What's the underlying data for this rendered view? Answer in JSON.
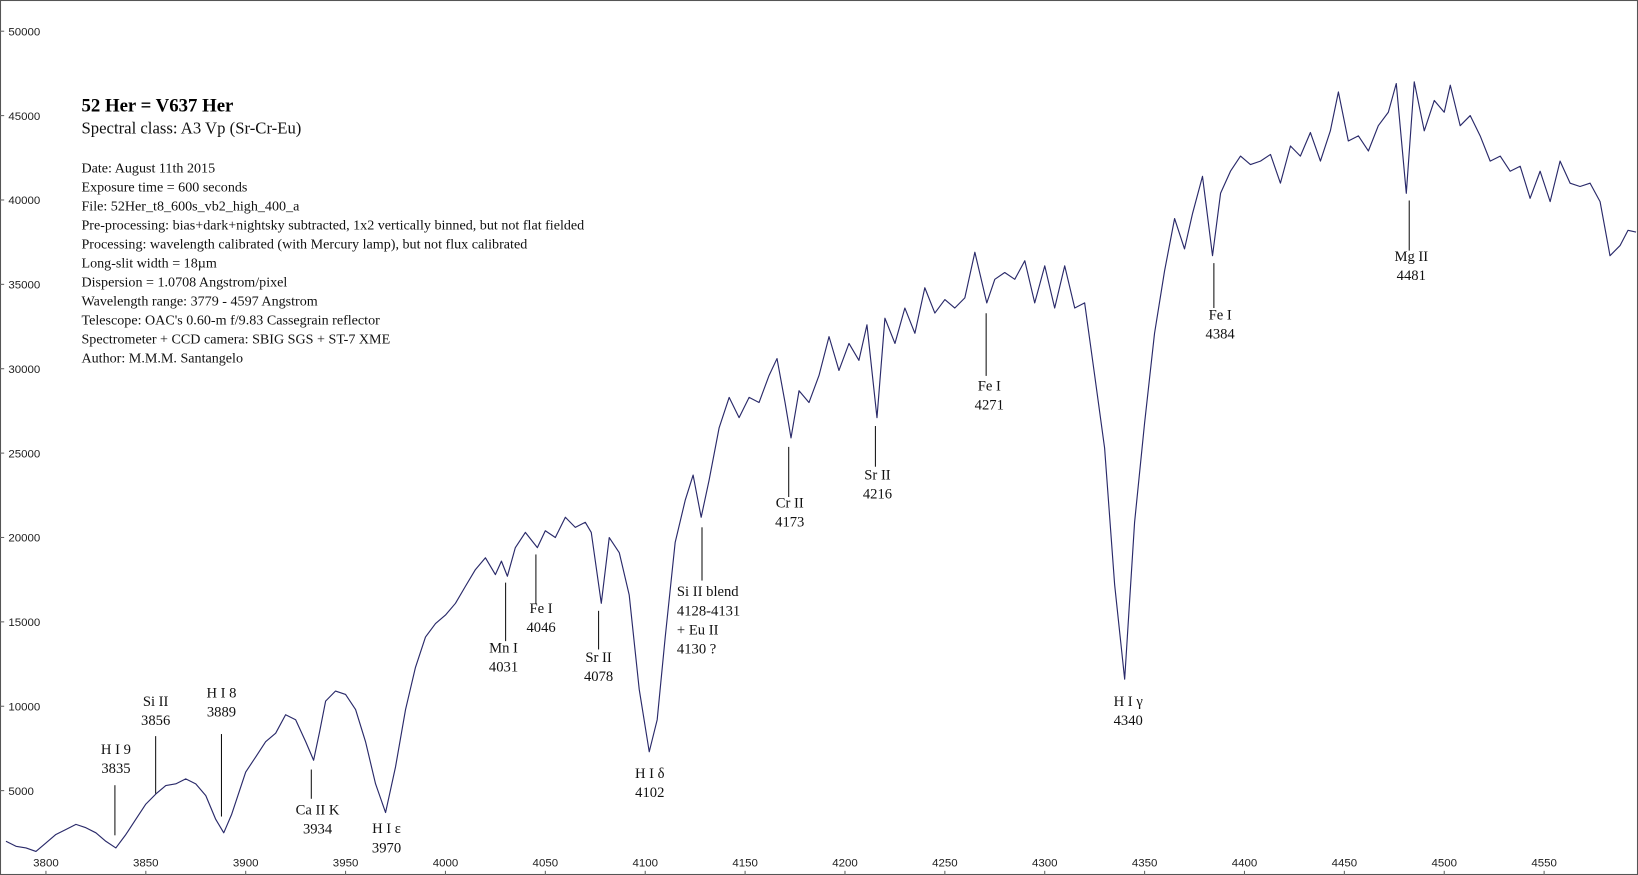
{
  "chart_data": {
    "type": "line",
    "title": "52 Her  = V637 Her",
    "subtitle": "Spectral class: A3 Vp (Sr-Cr-Eu)",
    "notes": [
      "Date: August 11th 2015",
      "Exposure time = 600 seconds",
      "File: 52Her_t8_600s_vb2_high_400_a",
      "Pre-processing: bias+dark+nightsky subtracted, 1x2 vertically binned, but not flat fielded",
      "Processing: wavelength calibrated (with Mercury lamp), but not flux calibrated",
      "Long-slit width = 18µm",
      "Dispersion = 1.0708 Angstrom/pixel",
      "Wavelength range: 3779 - 4597 Angstrom",
      "Telescope: OAC's 0.60-m f/9.83 Cassegrain reflector",
      "Spectrometer + CCD camera: SBIG SGS + ST-7 XME",
      "Author: M.M.M. Santangelo"
    ],
    "color": "#2a2a6a",
    "xlim": [
      3777,
      4597
    ],
    "ylim": [
      0,
      51850
    ],
    "xticks": [
      3800,
      3850,
      3900,
      3950,
      4000,
      4050,
      4100,
      4150,
      4200,
      4250,
      4300,
      4350,
      4400,
      4450,
      4500,
      4550
    ],
    "yticks": [
      5000,
      10000,
      15000,
      20000,
      25000,
      30000,
      35000,
      40000,
      45000,
      50000
    ],
    "x": [
      3780,
      3785,
      3790,
      3795,
      3800,
      3805,
      3810,
      3815,
      3820,
      3825,
      3830,
      3835,
      3840,
      3845,
      3850,
      3855,
      3860,
      3865,
      3870,
      3875,
      3880,
      3885,
      3889,
      3893,
      3900,
      3905,
      3910,
      3915,
      3920,
      3925,
      3930,
      3934,
      3937,
      3940,
      3945,
      3950,
      3955,
      3960,
      3965,
      3970,
      3975,
      3980,
      3985,
      3990,
      3995,
      4000,
      4005,
      4010,
      4015,
      4020,
      4025,
      4028,
      4031,
      4035,
      4040,
      4046,
      4050,
      4055,
      4060,
      4065,
      4070,
      4073,
      4078,
      4082,
      4087,
      4092,
      4097,
      4102,
      4106,
      4110,
      4115,
      4120,
      4124,
      4128,
      4132,
      4137,
      4142,
      4147,
      4152,
      4157,
      4162,
      4166,
      4170,
      4173,
      4177,
      4182,
      4187,
      4192,
      4197,
      4202,
      4207,
      4211,
      4216,
      4220,
      4225,
      4230,
      4235,
      4240,
      4245,
      4250,
      4255,
      4260,
      4265,
      4271,
      4275,
      4280,
      4285,
      4290,
      4295,
      4300,
      4305,
      4310,
      4315,
      4320,
      4325,
      4330,
      4335,
      4340,
      4345,
      4350,
      4355,
      4360,
      4365,
      4370,
      4374,
      4379,
      4384,
      4388,
      4393,
      4398,
      4403,
      4408,
      4413,
      4418,
      4423,
      4428,
      4433,
      4438,
      4443,
      4447,
      4452,
      4457,
      4462,
      4467,
      4472,
      4476,
      4481,
      4485,
      4490,
      4495,
      4500,
      4503,
      4508,
      4513,
      4518,
      4523,
      4528,
      4533,
      4538,
      4543,
      4548,
      4553,
      4558,
      4563,
      4568,
      4573,
      4578,
      4583,
      4588,
      4592,
      4596
    ],
    "values": [
      2000,
      1700,
      1600,
      1400,
      1900,
      2400,
      2700,
      3000,
      2800,
      2500,
      2000,
      1600,
      2400,
      3300,
      4200,
      4800,
      5300,
      5400,
      5700,
      5400,
      4700,
      3300,
      2500,
      3600,
      6100,
      7000,
      7900,
      8400,
      9500,
      9200,
      7900,
      6800,
      8500,
      10300,
      10900,
      10700,
      9800,
      7900,
      5400,
      3700,
      6400,
      9800,
      12300,
      14100,
      14900,
      15400,
      16100,
      17100,
      18100,
      18800,
      17800,
      18600,
      17700,
      19400,
      20300,
      19400,
      20400,
      20000,
      21200,
      20600,
      20900,
      20300,
      16100,
      20000,
      19100,
      16600,
      11000,
      7300,
      9200,
      14100,
      19700,
      22200,
      23700,
      21200,
      23400,
      26500,
      28300,
      27100,
      28300,
      28000,
      29600,
      30600,
      28000,
      25900,
      28700,
      28000,
      29600,
      31900,
      29900,
      31500,
      30500,
      32600,
      27100,
      33000,
      31500,
      33600,
      32100,
      34800,
      33300,
      34100,
      33600,
      34200,
      36900,
      33900,
      35300,
      35700,
      35300,
      36400,
      33900,
      36100,
      33600,
      36100,
      33600,
      33900,
      29600,
      25300,
      17200,
      11600,
      20900,
      26800,
      32100,
      35800,
      38900,
      37100,
      39200,
      41400,
      36700,
      40400,
      41700,
      42600,
      42100,
      42300,
      42700,
      41000,
      43200,
      42600,
      44000,
      42300,
      44100,
      46400,
      43500,
      43800,
      42900,
      44400,
      45200,
      46900,
      40400,
      47000,
      44100,
      45900,
      45200,
      46800,
      44400,
      45000,
      43800,
      42300,
      42600,
      41700,
      42000,
      40100,
      41700,
      39900,
      42300,
      41000,
      40800,
      41000,
      39900,
      36700,
      37300,
      38200,
      38100
    ],
    "annotations": [
      {
        "label": "H I  9",
        "wavelength": 3835
      },
      {
        "label": "Si II",
        "wavelength": 3856
      },
      {
        "label": "H I  8",
        "wavelength": 3889
      },
      {
        "label": "Ca II  K",
        "wavelength": 3934
      },
      {
        "label": "H I  ε",
        "wavelength": 3970
      },
      {
        "label": "Mn I",
        "wavelength": 4031
      },
      {
        "label": "Fe I",
        "wavelength": 4046
      },
      {
        "label": "Sr II",
        "wavelength": 4078
      },
      {
        "label": "H I  δ",
        "wavelength": 4102
      },
      {
        "label": "Si II blend",
        "wavelength": "4128-4131",
        "note": "+ Eu II",
        "note_wavelength": "4130 ?"
      },
      {
        "label": "Cr II",
        "wavelength": 4173
      },
      {
        "label": "Sr II",
        "wavelength": 4216
      },
      {
        "label": "Fe I",
        "wavelength": 4271
      },
      {
        "label": "H I  γ",
        "wavelength": 4340
      },
      {
        "label": "Fe I",
        "wavelength": 4384
      },
      {
        "label": "Mg II",
        "wavelength": 4481
      }
    ]
  }
}
